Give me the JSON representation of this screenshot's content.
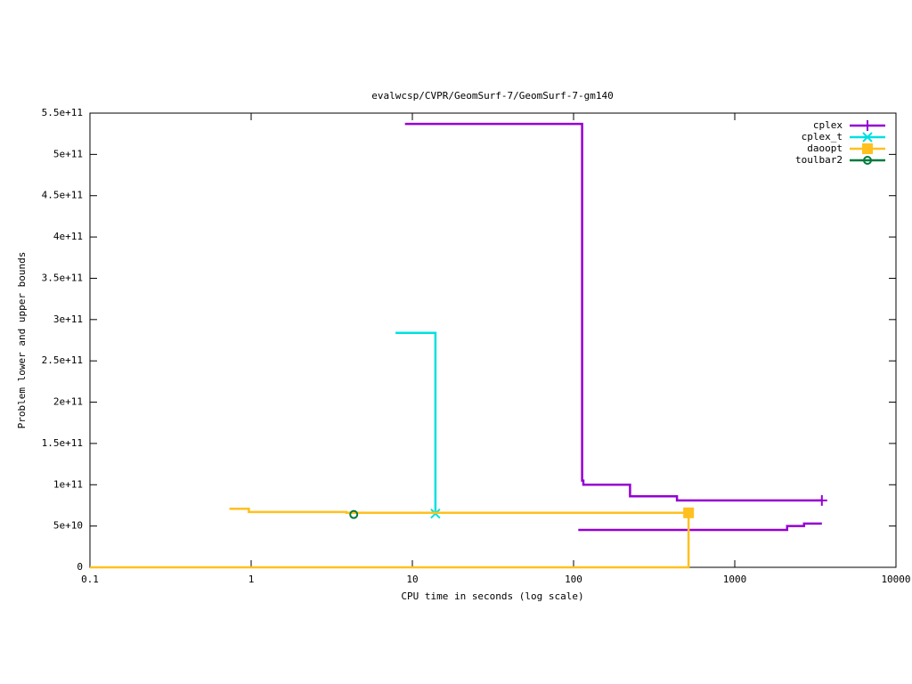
{
  "chart_data": {
    "type": "line",
    "step": true,
    "title": "evalwcsp/CVPR/GeomSurf-7/GeomSurf-7-gm140",
    "x_label": "CPU time in seconds (log scale)",
    "y_label": "Problem lower and upper bounds",
    "x_log": true,
    "grid": false,
    "legend": "top-right",
    "xlim": [
      0.1,
      10000
    ],
    "xticks": [
      0.1,
      1,
      10,
      100,
      1000,
      10000
    ],
    "ylim": [
      0,
      550000000000
    ],
    "yticks": [
      0,
      {
        "value": 50000000000,
        "label": "5e+10"
      },
      {
        "value": 100000000000,
        "label": "1e+11"
      },
      {
        "value": 150000000000,
        "label": "1.5e+11"
      },
      {
        "value": 200000000000,
        "label": "2e+11"
      },
      {
        "value": 250000000000,
        "label": "2.5e+11"
      },
      {
        "value": 300000000000,
        "label": "3e+11"
      },
      {
        "value": 350000000000,
        "label": "3.5e+11"
      },
      {
        "value": 400000000000,
        "label": "4e+11"
      },
      {
        "value": 450000000000,
        "label": "4.5e+11"
      },
      {
        "value": 500000000000,
        "label": "5e+11"
      },
      {
        "value": 550000000000,
        "label": "5.5e+11"
      }
    ],
    "series": [
      {
        "name": "cplex",
        "color": "#9400d3",
        "marker": "plus",
        "x": [
          9,
          113,
          113,
          115,
          115,
          224,
          224,
          438,
          438,
          3470,
          null,
          107,
          2113,
          2113,
          2690,
          2690,
          3470
        ],
        "values": [
          537000000000,
          537000000000,
          105000000000,
          105000000000,
          100000000000,
          100000000000,
          86000000000,
          86000000000,
          81000000000,
          81000000000,
          null,
          45300000000,
          45300000000,
          50000000000,
          50000000000,
          53000000000,
          53000000000
        ]
      },
      {
        "name": "cplex_t",
        "color": "#00e0e0",
        "marker": "cross",
        "x": [
          7.86,
          13.9,
          13.9
        ],
        "values": [
          284000000000,
          284000000000,
          65000000000
        ]
      },
      {
        "name": "daoopt",
        "color": "#ffc020",
        "marker": "square",
        "x": [
          0.733,
          0.968,
          0.968,
          3.9,
          3.9,
          517,
          null,
          0.1,
          517,
          517
        ],
        "values": [
          71000000000,
          71000000000,
          67000000000,
          67000000000,
          66000000000,
          66000000000,
          null,
          0,
          0,
          66000000000
        ]
      },
      {
        "name": "toulbar2",
        "color": "#007a3d",
        "marker": "circle",
        "x": [
          4.33
        ],
        "values": [
          64000000000
        ]
      }
    ]
  }
}
